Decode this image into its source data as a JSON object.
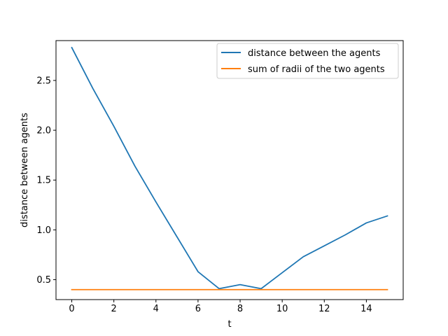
{
  "chart_data": {
    "type": "line",
    "xlabel": "t",
    "ylabel": "distance between agents",
    "xlim": [
      -0.75,
      15.75
    ],
    "ylim": [
      0.3,
      2.9
    ],
    "xticks": [
      0,
      2,
      4,
      6,
      8,
      10,
      12,
      14
    ],
    "yticks": [
      0.5,
      1.0,
      1.5,
      2.0,
      2.5
    ],
    "ytick_labels": [
      "0.5",
      "1.0",
      "1.5",
      "2.0",
      "2.5"
    ],
    "grid": false,
    "legend_position": "top-right",
    "series": [
      {
        "name": "distance between the agents",
        "color": "#1f77b4",
        "x": [
          0,
          1,
          2,
          3,
          4,
          5,
          6,
          7,
          8,
          9,
          10,
          11,
          12,
          13,
          14,
          15
        ],
        "y": [
          2.83,
          2.42,
          2.04,
          1.64,
          1.28,
          0.93,
          0.58,
          0.41,
          0.45,
          0.41,
          0.57,
          0.73,
          0.84,
          0.95,
          1.07,
          1.14
        ]
      },
      {
        "name": "sum of radii of the two agents",
        "color": "#ff7f0e",
        "x": [
          0,
          1,
          2,
          3,
          4,
          5,
          6,
          7,
          8,
          9,
          10,
          11,
          12,
          13,
          14,
          15
        ],
        "y": [
          0.4,
          0.4,
          0.4,
          0.4,
          0.4,
          0.4,
          0.4,
          0.4,
          0.4,
          0.4,
          0.4,
          0.4,
          0.4,
          0.4,
          0.4,
          0.4
        ]
      }
    ]
  }
}
